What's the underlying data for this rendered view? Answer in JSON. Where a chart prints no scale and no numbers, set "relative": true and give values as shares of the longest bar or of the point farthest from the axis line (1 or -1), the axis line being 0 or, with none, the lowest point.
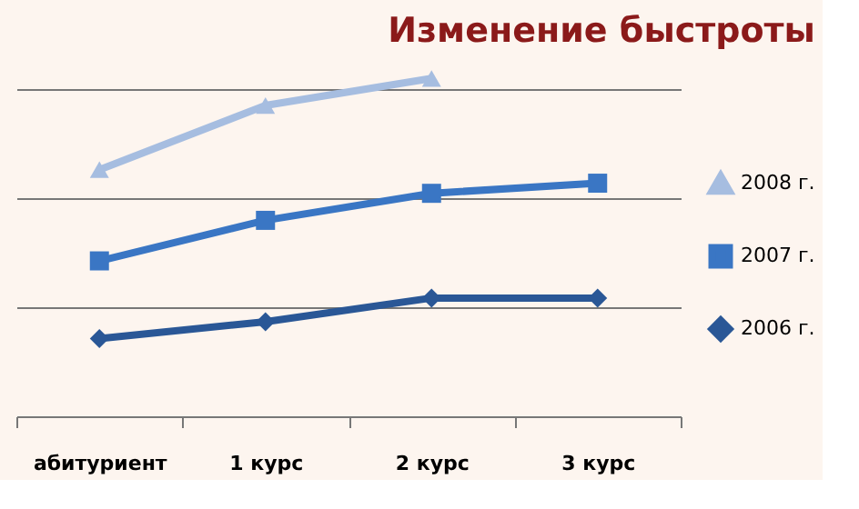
{
  "chart_data": {
    "type": "line",
    "title": "Изменение быстроты",
    "relative": true,
    "categories": [
      "абитуриент",
      "1 курс",
      "2 курс",
      "3 курс"
    ],
    "series": [
      {
        "name": "2008 г.",
        "color": "#a6bde0",
        "marker": "triangle",
        "values": [
          0.73,
          0.92,
          1.0,
          null
        ]
      },
      {
        "name": "2007 г.",
        "color": "#3a76c4",
        "marker": "square",
        "values": [
          0.46,
          0.58,
          0.66,
          0.69
        ]
      },
      {
        "name": "2006 г.",
        "color": "#2a5796",
        "marker": "diamond",
        "values": [
          0.23,
          0.28,
          0.35,
          0.35
        ]
      }
    ],
    "grid": "y",
    "legend": "right",
    "line_style": "solid"
  }
}
